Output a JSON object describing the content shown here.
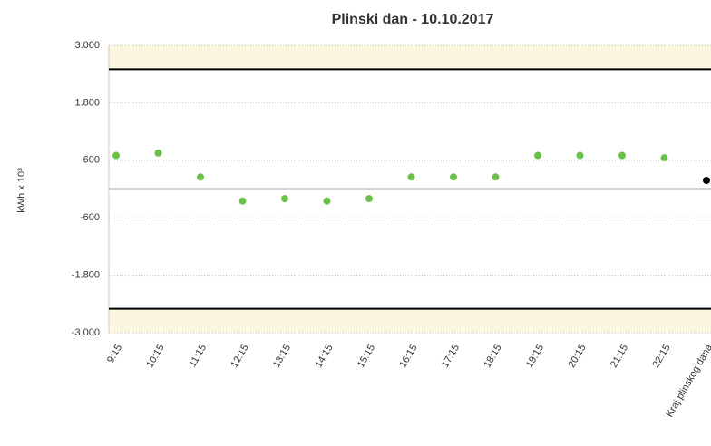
{
  "chart_data": {
    "type": "scatter",
    "title": "Plinski dan - 10.10.2017",
    "y_label": "kWh x 10³",
    "categories": [
      "9:15",
      "10:15",
      "11:15",
      "12:15",
      "13:15",
      "14:15",
      "15:15",
      "16:15",
      "17:15",
      "18:15",
      "19:15",
      "20:15",
      "21:15",
      "22:15",
      "Kraj plinskog dana"
    ],
    "series": [
      {
        "color": "#6cc04a",
        "values": [
          700,
          750,
          250,
          -250,
          -200,
          -250,
          -200,
          250,
          250,
          250,
          700,
          700,
          700,
          650,
          null
        ]
      },
      {
        "color": "#000000",
        "values": [
          null,
          null,
          null,
          null,
          null,
          null,
          null,
          null,
          null,
          null,
          null,
          null,
          null,
          null,
          180
        ]
      }
    ],
    "limit_lines": [
      2500,
      -2500
    ],
    "limit_color": "#000000",
    "center_line": 0,
    "center_color": "#aaaaaa",
    "ylim": [
      -3000,
      3000
    ],
    "yticks": [
      {
        "value": -3000,
        "label": "-3.000"
      },
      {
        "value": -1800,
        "label": "-1.800"
      },
      {
        "value": -600,
        "label": "-600"
      },
      {
        "value": 600,
        "label": "600"
      },
      {
        "value": 1800,
        "label": "1.800"
      },
      {
        "value": 3000,
        "label": "3.000"
      }
    ],
    "grid": true
  }
}
